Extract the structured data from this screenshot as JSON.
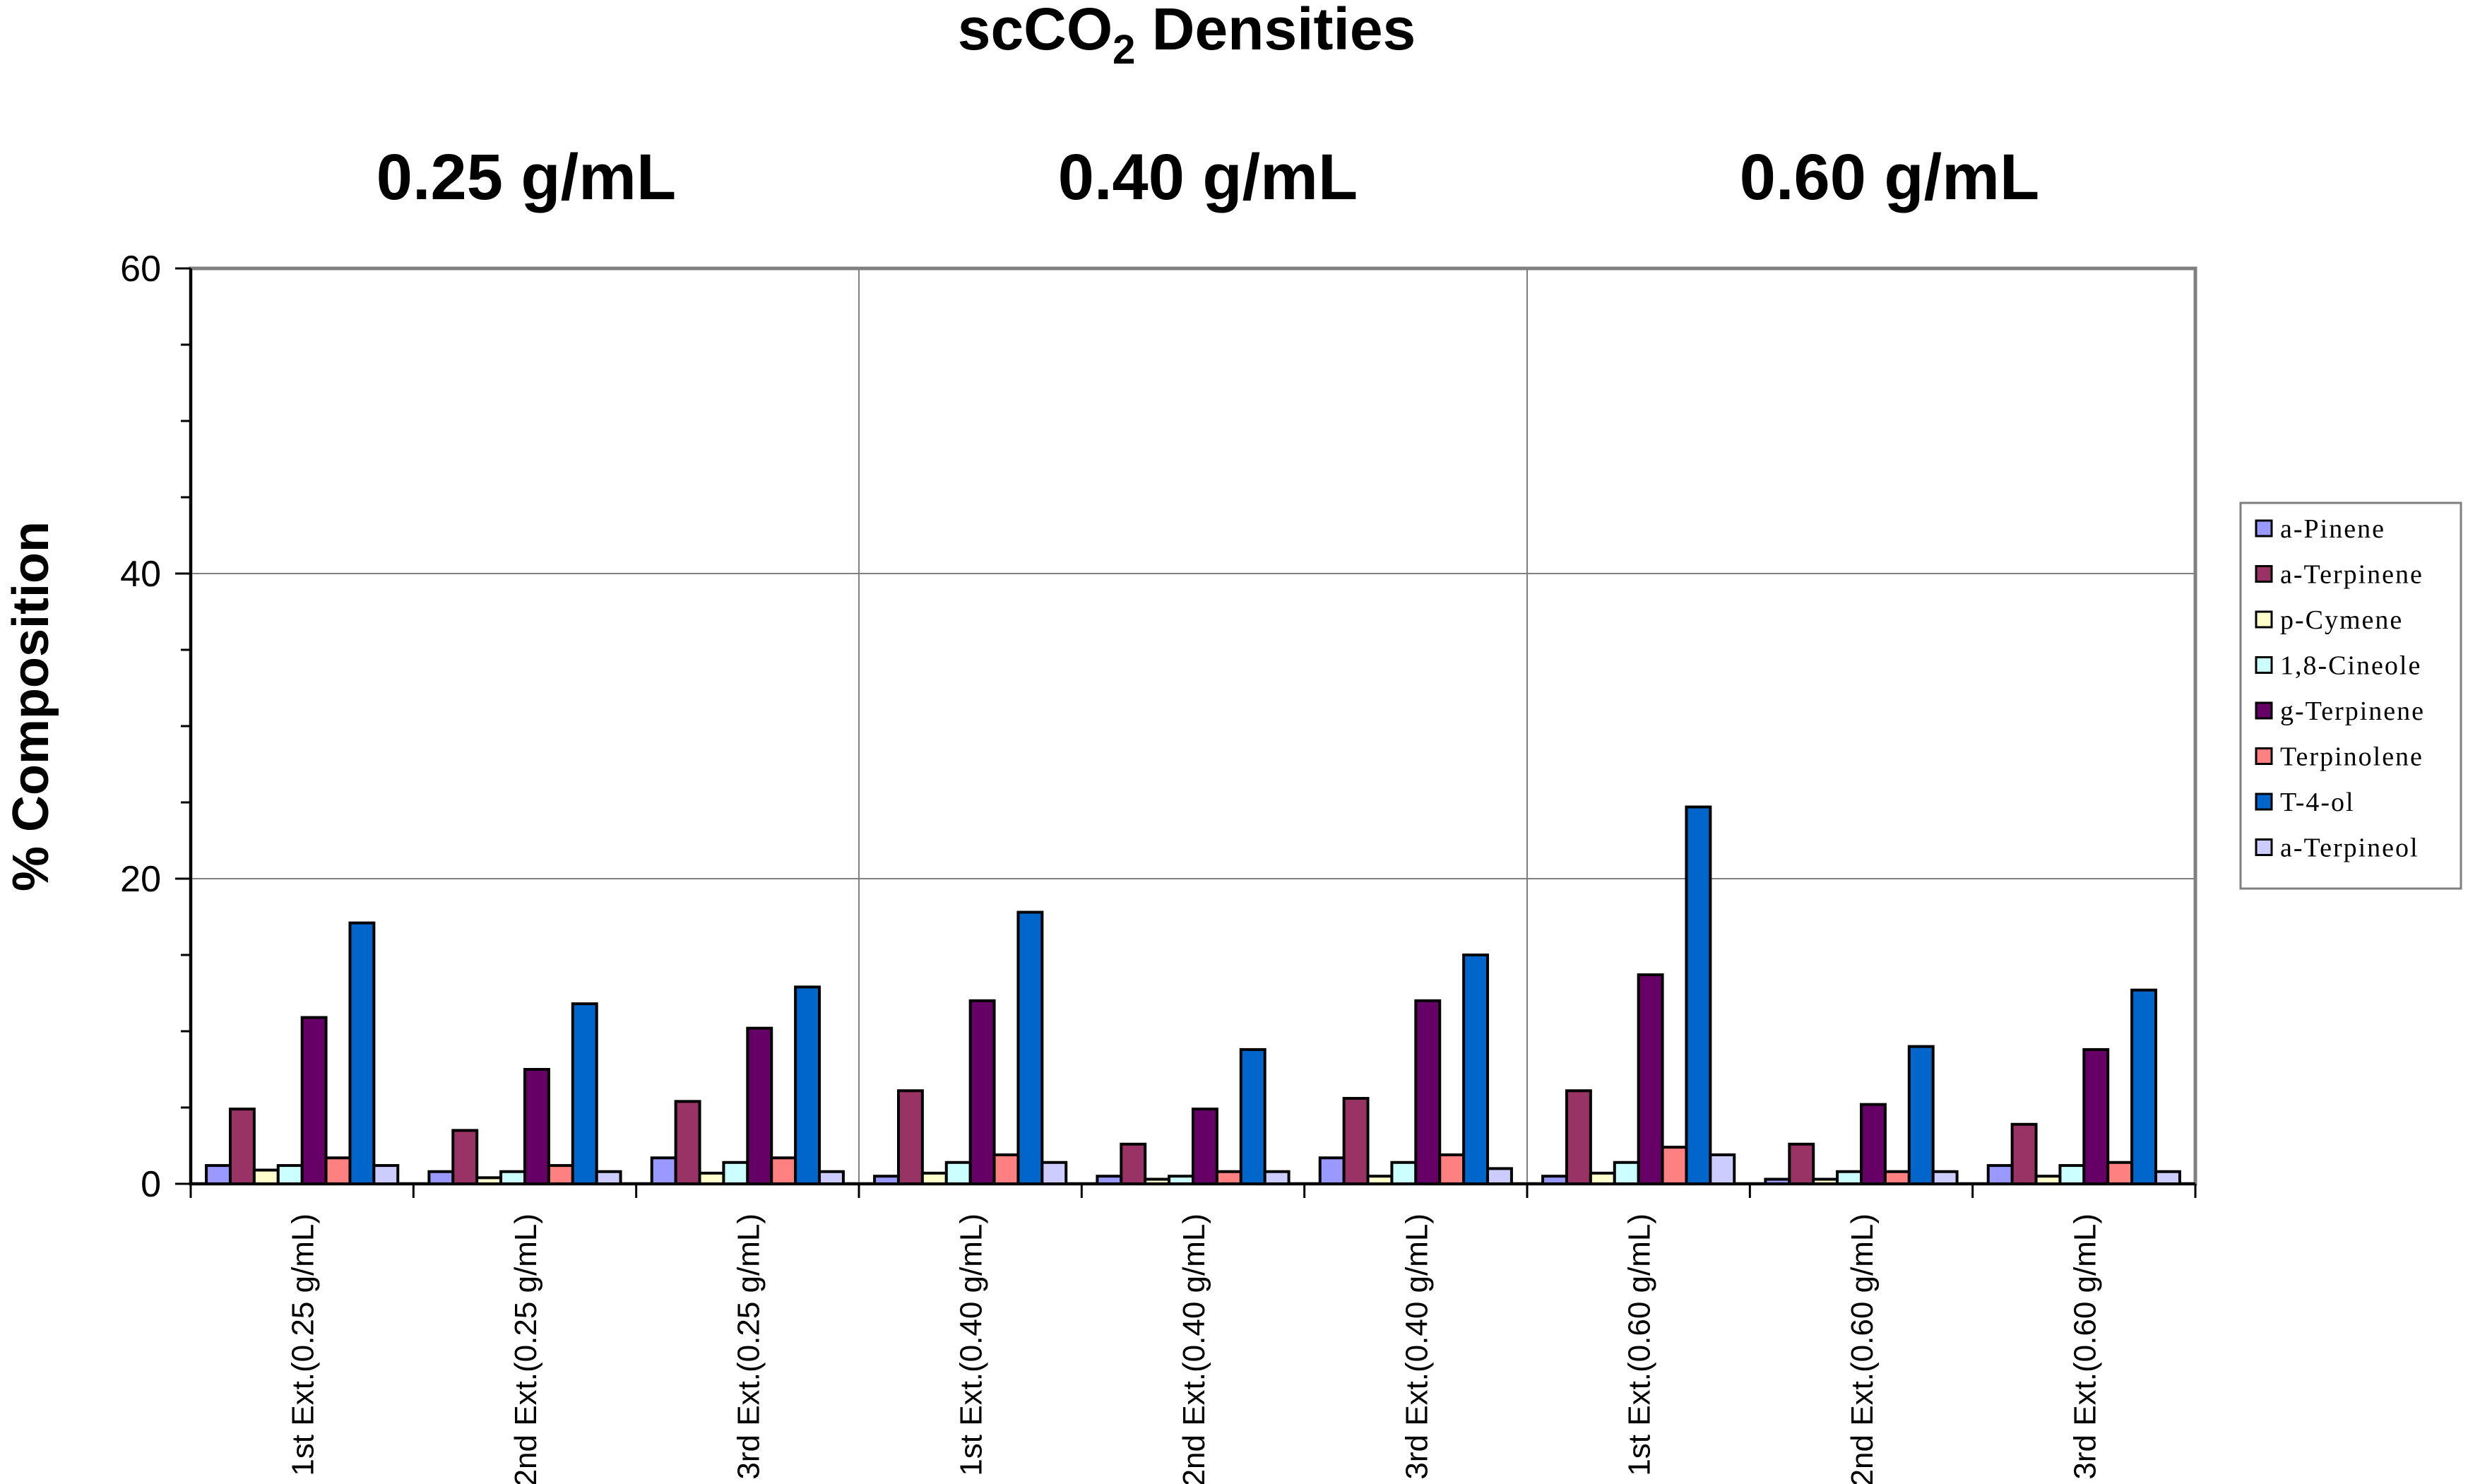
{
  "chart_data": {
    "type": "bar",
    "title": "scCO2 Densities",
    "title_main": "scCO",
    "title_sub": "2",
    "title_rest": " Densities",
    "panel_labels": [
      "0.25 g/mL",
      "0.40 g/mL",
      "0.60 g/mL"
    ],
    "ylabel": "% Composition",
    "xlabel": "",
    "ylim": [
      0,
      60
    ],
    "yticks": [
      0,
      20,
      40,
      60
    ],
    "grid": true,
    "legend_position": "right",
    "categories": [
      "1st Ext.(0.25 g/mL)",
      "2nd Ext.(0.25 g/mL)",
      "3rd Ext.(0.25 g/mL)",
      "1st Ext.(0.40 g/mL)",
      "2nd Ext.(0.40 g/mL)",
      "3rd Ext.(0.40 g/mL)",
      "1st Ext.(0.60 g/mL)",
      "2nd Ext.(0.60 g/mL)",
      "3rd Ext.(0.60 g/mL)"
    ],
    "series": [
      {
        "name": "a-Pinene",
        "color": "#9999ff",
        "values": [
          1.2,
          0.8,
          1.7,
          0.5,
          0.5,
          1.7,
          0.5,
          0.3,
          1.2
        ]
      },
      {
        "name": "a-Terpinene",
        "color": "#993366",
        "values": [
          4.9,
          3.5,
          5.4,
          6.1,
          2.6,
          5.6,
          6.1,
          2.6,
          3.9
        ]
      },
      {
        "name": "p-Cymene",
        "color": "#ffffcc",
        "values": [
          0.9,
          0.4,
          0.7,
          0.7,
          0.3,
          0.5,
          0.7,
          0.3,
          0.5
        ]
      },
      {
        "name": "1,8-Cineole",
        "color": "#ccffff",
        "values": [
          1.2,
          0.8,
          1.4,
          1.4,
          0.5,
          1.4,
          1.4,
          0.8,
          1.2
        ]
      },
      {
        "name": "g-Terpinene",
        "color": "#660066",
        "values": [
          10.9,
          7.5,
          10.2,
          12.0,
          4.9,
          12.0,
          13.7,
          5.2,
          8.8
        ]
      },
      {
        "name": "Terpinolene",
        "color": "#ff8080",
        "values": [
          1.7,
          1.2,
          1.7,
          1.9,
          0.8,
          1.9,
          2.4,
          0.8,
          1.4
        ]
      },
      {
        "name": "T-4-ol",
        "color": "#0066cc",
        "values": [
          17.1,
          11.8,
          12.9,
          17.8,
          8.8,
          15.0,
          24.7,
          9.0,
          12.7
        ]
      },
      {
        "name": "a-Terpineol",
        "color": "#ccccff",
        "values": [
          1.2,
          0.8,
          0.8,
          1.4,
          0.8,
          1.0,
          1.9,
          0.8,
          0.8
        ]
      }
    ]
  }
}
